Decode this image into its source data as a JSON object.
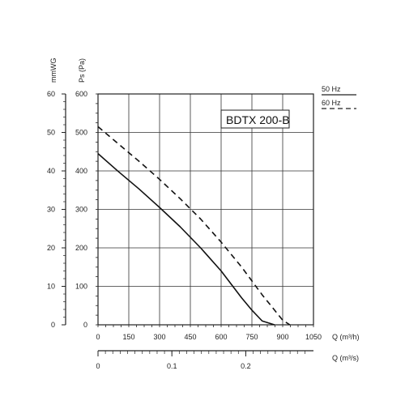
{
  "chart_data": {
    "type": "line",
    "title": "BDTX 200-B",
    "xlabel": "Q (m³/h)",
    "x2label": "Q (m³/s)",
    "ylabel": "Ps (Pa)",
    "y2label": "mmWG",
    "xlim": [
      0,
      1050
    ],
    "ylim": [
      0,
      600
    ],
    "grid": true,
    "legend_position": "top-right",
    "x_ticks": [
      "0",
      "150",
      "300",
      "450",
      "600",
      "750",
      "900",
      "1050"
    ],
    "y_ticks": [
      "0",
      "100",
      "200",
      "300",
      "400",
      "500",
      "600"
    ],
    "y2_ticks": [
      "0",
      "10",
      "20",
      "30",
      "40",
      "50",
      "60"
    ],
    "x2_ticks": [
      "0",
      "0.1",
      "0.2"
    ],
    "series": [
      {
        "name": "50 Hz",
        "style": "solid",
        "x": [
          0,
          100,
          200,
          300,
          400,
          500,
          600,
          700,
          750,
          800,
          860
        ],
        "y": [
          445,
          398,
          353,
          305,
          255,
          200,
          140,
          70,
          38,
          10,
          0
        ]
      },
      {
        "name": "60 Hz",
        "style": "dashed",
        "x": [
          0,
          100,
          200,
          300,
          400,
          500,
          600,
          700,
          800,
          850,
          900,
          935
        ],
        "y": [
          515,
          470,
          425,
          378,
          328,
          275,
          215,
          150,
          78,
          45,
          12,
          0
        ]
      }
    ]
  }
}
